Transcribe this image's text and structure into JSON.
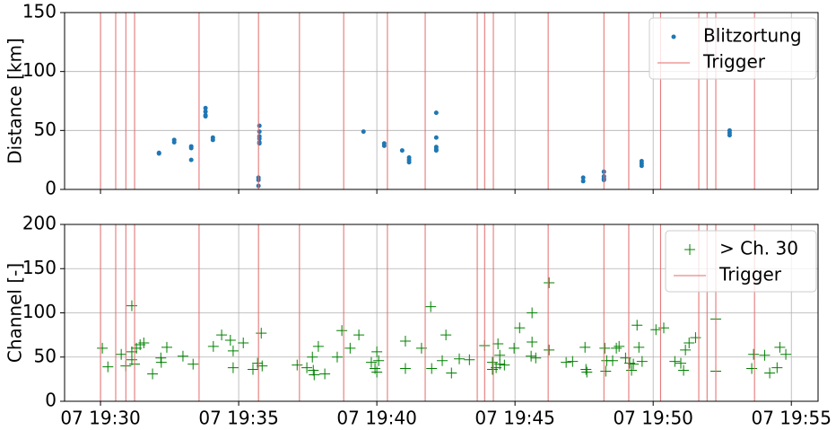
{
  "chart_data": [
    {
      "type": "scatter",
      "ylabel": "Distance [km]",
      "xlim": [
        "07 19:28:42",
        "07 19:55:58"
      ],
      "ylim": [
        0,
        150
      ],
      "yticks": [
        0,
        50,
        100,
        150
      ],
      "xticks": [
        "07 19:30",
        "07 19:35",
        "07 19:40",
        "07 19:45",
        "07 19:50",
        "07 19:55"
      ],
      "grid": true,
      "legend": "upper right",
      "series": [
        {
          "name": "Blitzortung",
          "color": "#1f77b4",
          "marker": ".",
          "x": [
            "07 19:32:07",
            "07 19:32:07",
            "07 19:32:40",
            "07 19:32:40",
            "07 19:33:17",
            "07 19:33:17",
            "07 19:33:17",
            "07 19:33:48",
            "07 19:33:48",
            "07 19:33:48",
            "07 19:33:48",
            "07 19:34:04",
            "07 19:34:04",
            "07 19:35:45",
            "07 19:35:45",
            "07 19:35:45",
            "07 19:35:45",
            "07 19:35:45",
            "07 19:35:45",
            "07 19:35:43",
            "07 19:35:43",
            "07 19:35:43",
            "07 19:39:31",
            "07 19:40:16",
            "07 19:40:16",
            "07 19:40:55",
            "07 19:41:10",
            "07 19:41:10",
            "07 19:41:10",
            "07 19:42:09",
            "07 19:42:09",
            "07 19:42:09",
            "07 19:42:09",
            "07 19:42:09",
            "07 19:47:28",
            "07 19:47:28",
            "07 19:48:13",
            "07 19:48:13",
            "07 19:48:13",
            "07 19:48:13",
            "07 19:49:35",
            "07 19:49:35",
            "07 19:49:35",
            "07 19:52:46",
            "07 19:52:46",
            "07 19:52:46"
          ],
          "values": [
            30.5,
            31,
            40,
            42,
            36.5,
            35,
            25,
            69,
            66,
            63,
            62,
            44,
            42,
            54,
            49,
            45,
            43,
            40,
            39,
            10,
            8,
            3,
            49,
            39,
            37,
            33,
            27,
            25,
            23,
            65,
            44,
            36,
            34,
            33,
            10,
            7,
            15,
            11,
            9,
            8,
            24,
            22,
            20,
            50,
            48,
            46
          ]
        },
        {
          "name": "Trigger",
          "color": "#e46a6a",
          "marker": "vline",
          "x": [
            "07 19:30:00",
            "07 19:30:33",
            "07 19:30:55",
            "07 19:31:14",
            "07 19:33:34",
            "07 19:35:43",
            "07 19:37:12",
            "07 19:38:48",
            "07 19:40:23",
            "07 19:41:45",
            "07 19:43:38",
            "07 19:43:54",
            "07 19:44:13",
            "07 19:46:12",
            "07 19:48:13",
            "07 19:49:07",
            "07 19:50:16",
            "07 19:51:39",
            "07 19:51:57",
            "07 19:52:16",
            "07 19:53:40"
          ]
        }
      ]
    },
    {
      "type": "scatter",
      "ylabel": "Channel [-]",
      "xlim": [
        "07 19:28:42",
        "07 19:55:58"
      ],
      "ylim": [
        0,
        200
      ],
      "yticks": [
        0,
        50,
        100,
        150,
        200
      ],
      "xticks": [
        "07 19:30",
        "07 19:35",
        "07 19:40",
        "07 19:45",
        "07 19:50",
        "07 19:55"
      ],
      "grid": true,
      "legend": "upper right",
      "series": [
        {
          "name": "> Ch. 30",
          "color": "#008000",
          "marker": "+",
          "x": [
            "07 19:30:04",
            "07 19:30:16",
            "07 19:30:45",
            "07 19:30:55",
            "07 19:31:08",
            "07 19:31:08",
            "07 19:31:08",
            "07 19:31:14",
            "07 19:31:18",
            "07 19:31:26",
            "07 19:31:34",
            "07 19:31:53",
            "07 19:32:11",
            "07 19:32:12",
            "07 19:32:24",
            "07 19:32:59",
            "07 19:33:21",
            "07 19:34:05",
            "07 19:34:23",
            "07 19:34:42",
            "07 19:34:48",
            "07 19:34:48",
            "07 19:35:10",
            "07 19:35:31",
            "07 19:35:41",
            "07 19:35:49",
            "07 19:35:51",
            "07 19:37:07",
            "07 19:37:28",
            "07 19:37:40",
            "07 19:37:44",
            "07 19:37:42",
            "07 19:37:53",
            "07 19:38:07",
            "07 19:38:34",
            "07 19:38:44",
            "07 19:39:02",
            "07 19:39:21",
            "07 19:39:48",
            "07 19:39:56",
            "07 19:40:00",
            "07 19:40:00",
            "07 19:40:04",
            "07 19:41:02",
            "07 19:41:02",
            "07 19:41:37",
            "07 19:41:57",
            "07 19:41:59",
            "07 19:42:22",
            "07 19:42:30",
            "07 19:42:42",
            "07 19:42:59",
            "07 19:43:21",
            "07 19:43:54",
            "07 19:44:11",
            "07 19:44:11",
            "07 19:44:19",
            "07 19:44:23",
            "07 19:44:27",
            "07 19:44:27",
            "07 19:44:37",
            "07 19:44:58",
            "07 19:45:10",
            "07 19:45:35",
            "07 19:45:37",
            "07 19:45:37",
            "07 19:45:45",
            "07 19:46:14",
            "07 19:46:14",
            "07 19:46:51",
            "07 19:47:05",
            "07 19:47:32",
            "07 19:47:34",
            "07 19:47:36",
            "07 19:48:15",
            "07 19:48:17",
            "07 19:48:19",
            "07 19:48:32",
            "07 19:48:40",
            "07 19:48:46",
            "07 19:49:00",
            "07 19:49:09",
            "07 19:49:13",
            "07 19:49:17",
            "07 19:49:25",
            "07 19:49:29",
            "07 19:49:36",
            "07 19:50:06",
            "07 19:50:23",
            "07 19:50:47",
            "07 19:51:00",
            "07 19:51:06",
            "07 19:51:10",
            "07 19:51:18",
            "07 19:51:32",
            "07 19:52:16",
            "07 19:52:16",
            "07 19:53:34",
            "07 19:53:38",
            "07 19:54:02",
            "07 19:54:13",
            "07 19:54:29",
            "07 19:54:35",
            "07 19:54:48"
          ],
          "values": [
            60,
            39,
            53,
            40,
            108,
            56,
            47,
            42,
            60,
            64,
            66,
            31,
            49,
            44,
            61,
            51,
            42,
            62,
            75,
            69,
            57,
            38,
            66,
            36,
            43,
            77,
            40,
            41,
            38,
            50,
            30,
            35,
            62,
            31,
            50,
            80,
            60,
            75,
            44,
            37,
            33,
            56,
            46,
            68,
            37,
            60,
            107,
            37,
            46,
            75,
            32,
            48,
            47,
            63,
            44,
            36,
            38,
            65,
            52,
            42,
            41,
            60,
            83,
            51,
            100,
            67,
            49,
            134,
            58,
            44,
            45,
            61,
            36,
            33,
            60,
            34,
            46,
            46,
            60,
            62,
            49,
            43,
            35,
            42,
            86,
            61,
            45,
            81,
            83,
            45,
            43,
            35,
            58,
            66,
            72,
            93,
            34,
            37,
            53,
            52,
            32,
            38,
            61,
            53
          ]
        },
        {
          "name": "Trigger",
          "color": "#e46a6a",
          "marker": "vline",
          "x": [
            "07 19:30:00",
            "07 19:30:33",
            "07 19:30:55",
            "07 19:31:14",
            "07 19:33:34",
            "07 19:35:43",
            "07 19:37:12",
            "07 19:38:48",
            "07 19:40:23",
            "07 19:41:45",
            "07 19:43:38",
            "07 19:43:54",
            "07 19:44:13",
            "07 19:46:12",
            "07 19:48:13",
            "07 19:49:07",
            "07 19:50:16",
            "07 19:51:39",
            "07 19:51:57",
            "07 19:52:16",
            "07 19:53:40"
          ]
        }
      ]
    }
  ]
}
